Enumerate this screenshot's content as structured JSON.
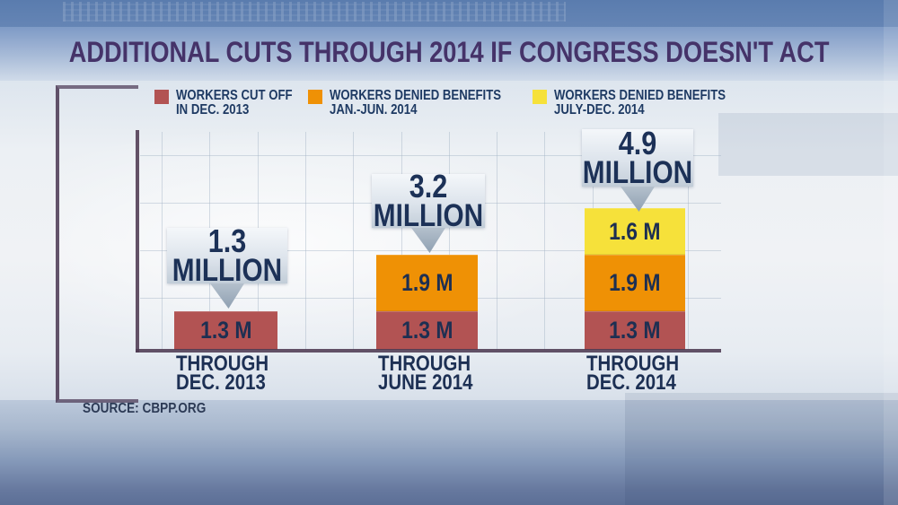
{
  "title": "ADDITIONAL CUTS THROUGH 2014 IF CONGRESS DOESN'T ACT",
  "source": "SOURCE: CBPP.ORG",
  "colors": {
    "red": "#b25353",
    "orange": "#ef9105",
    "yellow": "#f6e13a",
    "axis": "#4e3a52",
    "title_text": "#453369",
    "navy_text": "#1d2f52",
    "callout_bg": "#dde4ec"
  },
  "legend": {
    "items": [
      {
        "line1": "WORKERS CUT OFF",
        "line2": "IN DEC. 2013",
        "swatch": "red-swatch"
      },
      {
        "line1": "WORKERS DENIED BENEFITS",
        "line2": "JAN.-JUN. 2014",
        "swatch": "orange-swatch"
      },
      {
        "line1": "WORKERS DENIED BENEFITS",
        "line2": "JULY-DEC. 2014",
        "swatch": "yellow-swatch"
      }
    ]
  },
  "bars": [
    {
      "callout": {
        "line1": "1.3",
        "line2": "MILLION"
      },
      "label_line1": "THROUGH",
      "label_line2": "DEC. 2013",
      "segments": [
        {
          "series": "workers cut off in Dec. 2013",
          "label": "1.3 M",
          "value": 1.3
        }
      ]
    },
    {
      "callout": {
        "line1": "3.2",
        "line2": "MILLION"
      },
      "label_line1": "THROUGH",
      "label_line2": "JUNE 2014",
      "segments": [
        {
          "series": "workers cut off in Dec. 2013",
          "label": "1.3 M",
          "value": 1.3
        },
        {
          "series": "workers denied benefits Jan.-Jun. 2014",
          "label": "1.9 M",
          "value": 1.9
        }
      ]
    },
    {
      "callout": {
        "line1": "4.9",
        "line2": "MILLION"
      },
      "label_line1": "THROUGH",
      "label_line2": "DEC. 2014",
      "segments": [
        {
          "series": "workers cut off in Dec. 2013",
          "label": "1.3 M",
          "value": 1.3
        },
        {
          "series": "workers denied benefits Jan.-Jun. 2014",
          "label": "1.9 M",
          "value": 1.9
        },
        {
          "series": "workers denied benefits July-Dec. 2014",
          "label": "1.6 M",
          "value": 1.6
        }
      ]
    }
  ],
  "chart_data": {
    "type": "bar",
    "stacked": true,
    "title": "ADDITIONAL CUTS THROUGH 2014 IF CONGRESS DOESN'T ACT",
    "categories": [
      "THROUGH DEC. 2013",
      "THROUGH JUNE 2014",
      "THROUGH DEC. 2014"
    ],
    "series": [
      {
        "name": "WORKERS CUT OFF IN DEC. 2013",
        "color": "#b25353",
        "values": [
          1.3,
          1.3,
          1.3
        ]
      },
      {
        "name": "WORKERS DENIED BENEFITS JAN.-JUN. 2014",
        "color": "#ef9105",
        "values": [
          0,
          1.9,
          1.9
        ]
      },
      {
        "name": "WORKERS DENIED BENEFITS JULY-DEC. 2014",
        "color": "#f6e13a",
        "values": [
          0,
          0,
          1.6
        ]
      }
    ],
    "totals": [
      1.3,
      3.2,
      4.9
    ],
    "total_labels": [
      "1.3 MILLION",
      "3.2 MILLION",
      "4.9 MILLION"
    ],
    "unit": "millions of workers",
    "xlabel": "",
    "ylabel": "",
    "ylim": [
      0,
      7.4
    ],
    "grid": true,
    "legend_position": "top",
    "source": "SOURCE: CBPP.ORG"
  }
}
